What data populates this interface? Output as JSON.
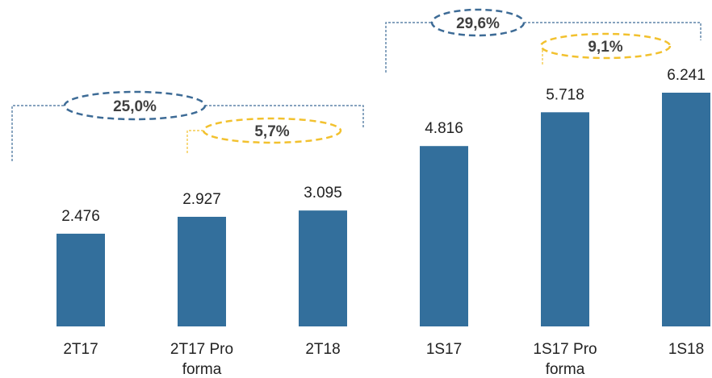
{
  "chart_data": {
    "type": "bar",
    "categories": [
      "2T17",
      "2T17 Pro forma",
      "2T18",
      "1S17",
      "1S17 Pro forma",
      "1S18"
    ],
    "values": [
      2476,
      2927,
      3095,
      4816,
      5718,
      6241
    ],
    "value_labels": [
      "2.476",
      "2.927",
      "3.095",
      "4.816",
      "5.718",
      "6.241"
    ],
    "color": "#336f9c",
    "annotations": [
      {
        "label": "25,0%",
        "color": "#3d6b96"
      },
      {
        "label": "5,7%",
        "color": "#f2c12e"
      },
      {
        "label": "29,6%",
        "color": "#3d6b96"
      },
      {
        "label": "9,1%",
        "color": "#f2c12e"
      }
    ]
  }
}
